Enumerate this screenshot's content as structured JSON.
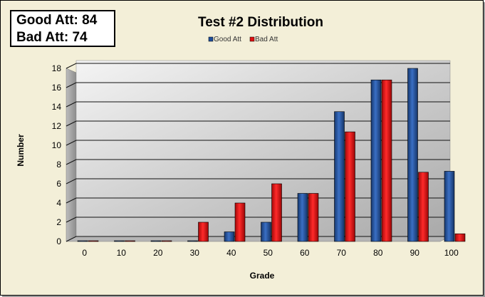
{
  "stats": {
    "good_line": "Good Att: 84",
    "bad_line": "Bad Att: 74"
  },
  "chart_data": {
    "type": "bar",
    "title": "Test #2 Distribution",
    "xlabel": "Grade",
    "ylabel": "Number",
    "categories": [
      "0",
      "10",
      "20",
      "30",
      "40",
      "50",
      "60",
      "70",
      "80",
      "90",
      "100"
    ],
    "series": [
      {
        "name": "Good Att",
        "color": "#1f4e9a",
        "values": [
          0,
          0,
          0,
          0,
          1,
          2,
          5,
          13.5,
          16.8,
          18,
          7.3
        ]
      },
      {
        "name": "Bad Att",
        "color": "#e01010",
        "values": [
          0,
          0,
          0,
          2,
          4,
          6,
          5,
          11.4,
          16.8,
          7.2,
          0.8
        ]
      }
    ],
    "ylim": [
      0,
      18
    ],
    "yticks": [
      "0",
      "2",
      "4",
      "6",
      "8",
      "10",
      "12",
      "14",
      "16",
      "18"
    ],
    "grid": true,
    "legend_position": "top-center"
  }
}
